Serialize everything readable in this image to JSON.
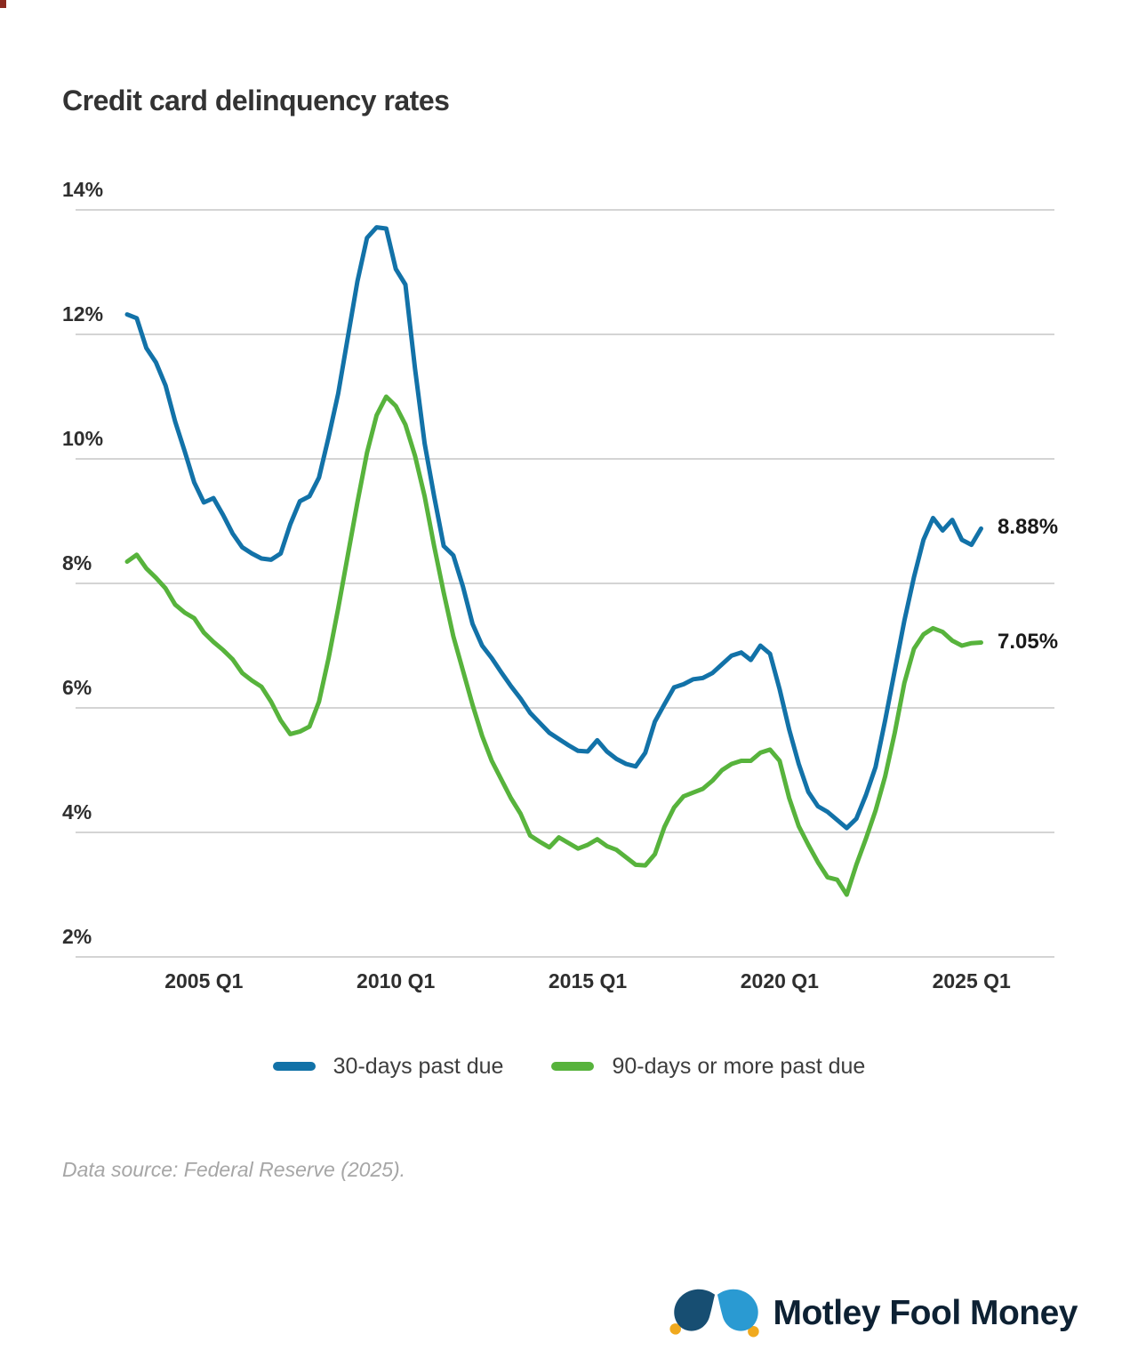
{
  "title": "Credit card delinquency rates",
  "colors": {
    "blue": "#1272a8",
    "green": "#57b33c",
    "grid": "#d4d4d4",
    "title_text": "#333333",
    "tick_text": "#2e2e2e",
    "end_label_text": "#1a1a1a",
    "footer_text": "#a6a6a6",
    "logo_navy": "#174e72",
    "logo_light_blue": "#2a9ad2",
    "logo_bell_gold": "#f0a91e",
    "logo_text": "#0d2133"
  },
  "chart_data": {
    "type": "line",
    "title": "Credit card delinquency rates",
    "frequency": "quarterly",
    "x_start": "2003 Q1",
    "x_end": "2025 Q2",
    "ylim": [
      2,
      14
    ],
    "y_ticks": [
      14,
      12,
      10,
      8,
      6,
      4,
      2
    ],
    "y_tick_suffix": "%",
    "grid": "horizontal",
    "legend_position": "bottom",
    "x_tick_labels": [
      {
        "label": "2005 Q1",
        "index": 8
      },
      {
        "label": "2010 Q1",
        "index": 28
      },
      {
        "label": "2015 Q1",
        "index": 48
      },
      {
        "label": "2020 Q1",
        "index": 68
      },
      {
        "label": "2025 Q1",
        "index": 88
      }
    ],
    "end_labels": [
      {
        "text": "8.88%"
      },
      {
        "text": "7.05%"
      }
    ],
    "series": [
      {
        "name": "30-days past due",
        "color": "#1272a8",
        "values": [
          12.32,
          12.26,
          11.78,
          11.55,
          11.18,
          10.6,
          10.12,
          9.62,
          9.3,
          9.37,
          9.1,
          8.8,
          8.58,
          8.48,
          8.4,
          8.38,
          8.48,
          8.95,
          9.32,
          9.4,
          9.7,
          10.35,
          11.05,
          11.95,
          12.85,
          13.55,
          13.72,
          13.7,
          13.05,
          12.8,
          11.45,
          10.25,
          9.4,
          8.6,
          8.45,
          7.95,
          7.35,
          7.0,
          6.8,
          6.57,
          6.35,
          6.15,
          5.92,
          5.76,
          5.6,
          5.5,
          5.4,
          5.31,
          5.3,
          5.48,
          5.3,
          5.18,
          5.1,
          5.06,
          5.28,
          5.78,
          6.06,
          6.33,
          6.38,
          6.46,
          6.48,
          6.56,
          6.7,
          6.84,
          6.89,
          6.77,
          7.0,
          6.87,
          6.3,
          5.65,
          5.1,
          4.65,
          4.42,
          4.33,
          4.2,
          4.07,
          4.22,
          4.6,
          5.05,
          5.8,
          6.6,
          7.4,
          8.1,
          8.7,
          9.05,
          8.85,
          9.02,
          8.7,
          8.62,
          8.88
        ]
      },
      {
        "name": "90-days or more past due",
        "color": "#57b33c",
        "values": [
          8.35,
          8.46,
          8.24,
          8.09,
          7.92,
          7.66,
          7.53,
          7.44,
          7.21,
          7.06,
          6.93,
          6.78,
          6.56,
          6.44,
          6.34,
          6.1,
          5.8,
          5.58,
          5.62,
          5.7,
          6.1,
          6.8,
          7.6,
          8.45,
          9.3,
          10.1,
          10.7,
          11.0,
          10.85,
          10.55,
          10.05,
          9.4,
          8.6,
          7.85,
          7.15,
          6.6,
          6.05,
          5.55,
          5.15,
          4.85,
          4.55,
          4.3,
          3.95,
          3.85,
          3.76,
          3.92,
          3.83,
          3.74,
          3.8,
          3.89,
          3.78,
          3.72,
          3.6,
          3.48,
          3.47,
          3.65,
          4.09,
          4.4,
          4.58,
          4.64,
          4.7,
          4.83,
          5.0,
          5.1,
          5.15,
          5.15,
          5.28,
          5.33,
          5.15,
          4.55,
          4.1,
          3.8,
          3.52,
          3.28,
          3.24,
          3.0,
          3.48,
          3.9,
          4.35,
          4.9,
          5.6,
          6.4,
          6.95,
          7.18,
          7.28,
          7.22,
          7.08,
          7.0,
          7.04,
          7.05
        ]
      }
    ]
  },
  "legend": {
    "items": [
      {
        "label": "30-days past due",
        "color": "#1272a8"
      },
      {
        "label": "90-days or more past due",
        "color": "#57b33c"
      }
    ]
  },
  "footer": {
    "source_note": "Data source: Federal Reserve (2025)."
  },
  "logo": {
    "text": "Motley Fool Money"
  }
}
